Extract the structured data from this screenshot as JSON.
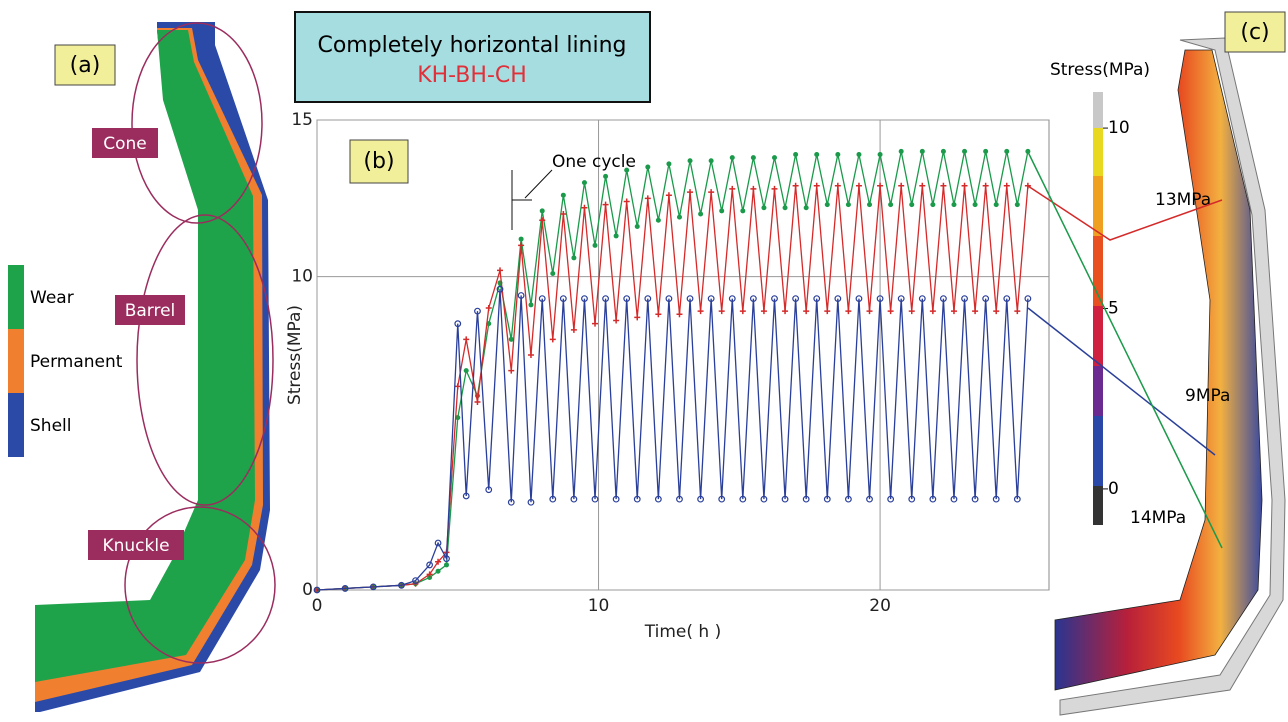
{
  "chart_data": {
    "type": "line",
    "title": "Completely horizontal lining",
    "subtitle": "KH-BH-CH",
    "panel_label": "(b)",
    "annotation": "One cycle",
    "x_label": "Time( h )",
    "y_label": "Stress(MPa)",
    "xlim": [
      0,
      26
    ],
    "ylim": [
      0,
      15
    ],
    "xticks": [
      0,
      10,
      20
    ],
    "yticks": [
      0,
      10,
      15
    ],
    "grid": true,
    "x": [
      0,
      1,
      2,
      3,
      3.5,
      4,
      4.3,
      4.6,
      5.0,
      5.3,
      5.7,
      6.1,
      6.5,
      6.9,
      7.25,
      7.6,
      8,
      8.375,
      8.75,
      9.125,
      9.5,
      9.875,
      10.25,
      10.625,
      11,
      11.375,
      11.75,
      12.125,
      12.5,
      12.875,
      13.25,
      13.625,
      14,
      14.375,
      14.75,
      15.125,
      15.5,
      15.875,
      16.25,
      16.625,
      17,
      17.375,
      17.75,
      18.125,
      18.5,
      18.875,
      19.25,
      19.625,
      20,
      20.375,
      20.75,
      21.125,
      21.5,
      21.875,
      22.25,
      22.625,
      23,
      23.375,
      23.75,
      24.125,
      24.5,
      24.875,
      25.25
    ],
    "series": [
      {
        "color": "#1a9a4a",
        "marker": "dot",
        "values": [
          0,
          0.05,
          0.1,
          0.15,
          0.2,
          0.4,
          0.6,
          0.8,
          5.5,
          7.0,
          6.2,
          8.5,
          9.8,
          8.0,
          11.2,
          9.1,
          12.1,
          10.1,
          12.6,
          10.6,
          13.0,
          11.0,
          13.2,
          11.3,
          13.4,
          11.6,
          13.5,
          11.8,
          13.6,
          11.9,
          13.7,
          12.0,
          13.7,
          12.1,
          13.8,
          12.1,
          13.8,
          12.2,
          13.8,
          12.2,
          13.9,
          12.2,
          13.9,
          12.3,
          13.9,
          12.3,
          13.9,
          12.3,
          13.9,
          12.3,
          14.0,
          12.3,
          14.0,
          12.3,
          14.0,
          12.3,
          14.0,
          12.3,
          14.0,
          12.3,
          14.0,
          12.3,
          14.0
        ]
      },
      {
        "color": "#d42a2a",
        "marker": "plus",
        "values": [
          0,
          0.05,
          0.1,
          0.15,
          0.2,
          0.5,
          0.9,
          1.2,
          6.5,
          8.0,
          6.0,
          9.0,
          10.2,
          7.0,
          11.0,
          7.5,
          11.8,
          8.0,
          12.0,
          8.3,
          12.2,
          8.5,
          12.3,
          8.6,
          12.4,
          8.7,
          12.5,
          8.8,
          12.6,
          8.8,
          12.7,
          8.9,
          12.7,
          8.9,
          12.8,
          8.9,
          12.8,
          8.9,
          12.8,
          8.9,
          12.9,
          8.9,
          12.9,
          8.9,
          12.9,
          8.9,
          12.9,
          8.9,
          12.9,
          8.9,
          12.9,
          8.9,
          12.9,
          8.9,
          12.9,
          8.9,
          12.9,
          8.9,
          12.9,
          8.9,
          12.9,
          8.9,
          12.9
        ]
      },
      {
        "color": "#2a3f9a",
        "marker": "circle",
        "values": [
          0,
          0.05,
          0.1,
          0.15,
          0.3,
          0.8,
          1.5,
          1.0,
          8.5,
          3.0,
          8.9,
          3.2,
          9.6,
          2.8,
          9.4,
          2.8,
          9.3,
          2.9,
          9.3,
          2.9,
          9.3,
          2.9,
          9.3,
          2.9,
          9.3,
          2.9,
          9.3,
          2.9,
          9.3,
          2.9,
          9.3,
          2.9,
          9.3,
          2.9,
          9.3,
          2.9,
          9.3,
          2.9,
          9.3,
          2.9,
          9.3,
          2.9,
          9.3,
          2.9,
          9.3,
          2.9,
          9.3,
          2.9,
          9.3,
          2.9,
          9.3,
          2.9,
          9.3,
          2.9,
          9.3,
          2.9,
          9.3,
          2.9,
          9.3,
          2.9,
          9.3,
          2.9,
          9.3
        ]
      }
    ]
  },
  "panel_a": {
    "label": "(a)",
    "regions": [
      "Cone",
      "Barrel",
      "Knuckle"
    ],
    "legend": [
      {
        "name": "Wear",
        "color": "#1ea34a"
      },
      {
        "name": "Permanent",
        "color": "#f08030"
      },
      {
        "name": "Shell",
        "color": "#2b4aa8"
      }
    ]
  },
  "panel_c": {
    "label": "(c)",
    "colorbar_title": "Stress(MPa)",
    "clim": [
      -1,
      11
    ],
    "ticks": [
      0,
      5,
      10
    ],
    "callouts": [
      "13MPa",
      "9MPa",
      "14MPa"
    ]
  }
}
